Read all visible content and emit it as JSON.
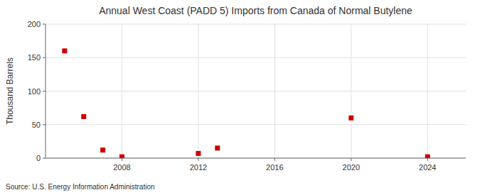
{
  "chart_data": {
    "type": "scatter",
    "title": "Annual West Coast (PADD 5) Imports from Canada of Normal Butylene",
    "y_label": "Thousand Barrels",
    "annotations": [
      "Source: U.S. Energy Information Administration"
    ],
    "x": [
      2005,
      2006,
      2007,
      2008,
      2012,
      2013,
      2020,
      2024
    ],
    "values": [
      160,
      62,
      12,
      2,
      7,
      15,
      60,
      2
    ],
    "color": "#cc0000",
    "marker": "square",
    "xlim": [
      2004,
      2026
    ],
    "ylim": [
      0,
      200
    ],
    "xticks": [
      2008,
      2012,
      2016,
      2020,
      2024
    ],
    "yticks": [
      0,
      50,
      100,
      150,
      200
    ],
    "grid": true
  }
}
